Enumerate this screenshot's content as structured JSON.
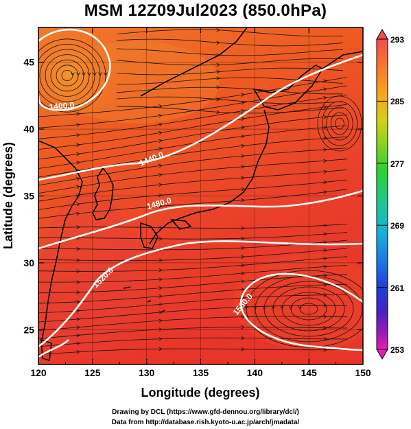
{
  "title": "MSM 12Z09Jul2023 (850.0hPa)",
  "map": {
    "lon_range": [
      120,
      150
    ],
    "lat_range": [
      22.4,
      47.6
    ],
    "x_ticks": [
      "120",
      "125",
      "130",
      "135",
      "140",
      "145",
      "150"
    ],
    "y_ticks": [
      "25",
      "30",
      "35",
      "40",
      "45"
    ],
    "xlabel": "Longitude (degrees)",
    "ylabel": "Latitude  (degrees)",
    "contour_labels": [
      "1400.0",
      "1440.0",
      "1480.0",
      "1520.0",
      "1560.0"
    ]
  },
  "colorbar": {
    "ticks": [
      "293",
      "285",
      "277",
      "269",
      "261",
      "253"
    ],
    "colors_top_to_bottom": [
      "#f24d4d",
      "#f7742f",
      "#f5a319",
      "#d6cf1a",
      "#8fd321",
      "#2ed12f",
      "#20c88c",
      "#16b3d6",
      "#1f74e6",
      "#1d3fd6",
      "#4a20c2",
      "#a01ab8",
      "#e21fb4"
    ]
  },
  "colors": {
    "map_warm": "#f0471c",
    "map_hot": "#e8352a",
    "map_orange": "#f07a2a",
    "coastline": "#000000",
    "contour": "#ffffff"
  },
  "credits": {
    "line1": "Drawing by DCL (https://www.gfd-dennou.org/library/dcl/)",
    "line2": "Data from http://database.rish.kyoto-u.ac.jp/arch/jmadata/"
  }
}
